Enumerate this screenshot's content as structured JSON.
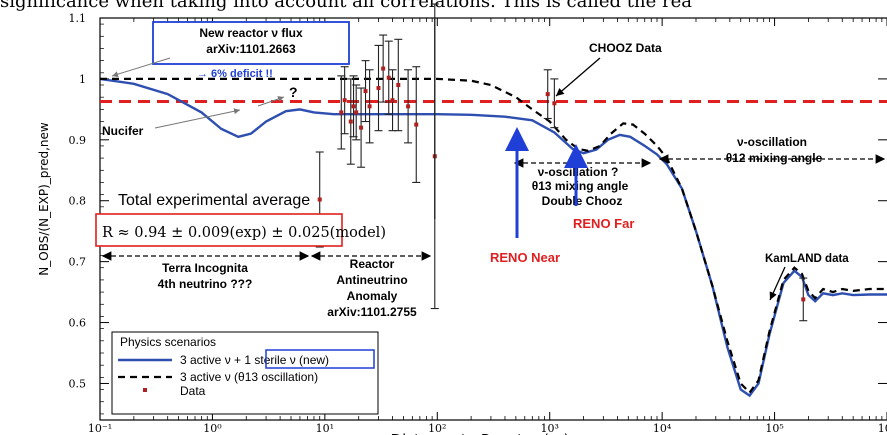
{
  "top_caption": "significance when taking into account all correlations. This is called the rea",
  "chart_data": {
    "type": "line",
    "title": "",
    "xlabel": "Distance to Reactor (m)",
    "ylabel": "N_OBS/(N_EXP)_pred,new",
    "xscale": "log",
    "xlim": [
      0.1,
      1000000
    ],
    "ylim": [
      0.44,
      1.1
    ],
    "x_ticks": [
      0.1,
      1,
      10,
      100,
      1000,
      10000,
      100000,
      1000000
    ],
    "x_tick_labels": [
      "10⁻¹",
      "10⁰",
      "10¹",
      "10²",
      "10³",
      "10⁴",
      "10⁵",
      "10⁶"
    ],
    "y_ticks": [
      0.5,
      0.6,
      0.7,
      0.8,
      0.9,
      1.0,
      1.1
    ],
    "y_tick_labels": [
      "0.5",
      "0.6",
      "0.7",
      "0.8",
      "0.9",
      "1",
      "1.1"
    ],
    "grid": false,
    "series": [
      {
        "name": "3 active ν + 1 sterile ν (new)",
        "color": "#2e4fb0",
        "style": "solid",
        "points": [
          [
            0.1,
            1.0
          ],
          [
            0.2,
            0.992
          ],
          [
            0.4,
            0.975
          ],
          [
            0.8,
            0.945
          ],
          [
            1.2,
            0.918
          ],
          [
            1.7,
            0.905
          ],
          [
            2.2,
            0.91
          ],
          [
            3.0,
            0.93
          ],
          [
            4.5,
            0.947
          ],
          [
            6.0,
            0.95
          ],
          [
            8.0,
            0.945
          ],
          [
            12,
            0.942
          ],
          [
            20,
            0.942
          ],
          [
            50,
            0.942
          ],
          [
            100,
            0.942
          ],
          [
            200,
            0.941
          ],
          [
            400,
            0.938
          ],
          [
            700,
            0.932
          ],
          [
            1100,
            0.912
          ],
          [
            1600,
            0.885
          ],
          [
            2000,
            0.878
          ],
          [
            2600,
            0.884
          ],
          [
            3300,
            0.9
          ],
          [
            4200,
            0.908
          ],
          [
            5200,
            0.905
          ],
          [
            7000,
            0.89
          ],
          [
            9000,
            0.876
          ],
          [
            11000,
            0.86
          ],
          [
            15000,
            0.82
          ],
          [
            20000,
            0.75
          ],
          [
            28000,
            0.66
          ],
          [
            38000,
            0.56
          ],
          [
            50000,
            0.49
          ],
          [
            60000,
            0.48
          ],
          [
            72000,
            0.5
          ],
          [
            90000,
            0.58
          ],
          [
            120000,
            0.665
          ],
          [
            150000,
            0.685
          ],
          [
            175000,
            0.675
          ],
          [
            200000,
            0.645
          ],
          [
            230000,
            0.635
          ],
          [
            270000,
            0.648
          ],
          [
            330000,
            0.645
          ],
          [
            400000,
            0.648
          ],
          [
            500000,
            0.645
          ],
          [
            700000,
            0.646
          ],
          [
            1000000,
            0.646
          ]
        ]
      },
      {
        "name": "3 active ν (θ13 oscillation)",
        "color": "#000000",
        "style": "dashed",
        "points": [
          [
            0.1,
            1.0
          ],
          [
            1,
            1.0
          ],
          [
            10,
            1.0
          ],
          [
            50,
            1.0
          ],
          [
            100,
            1.0
          ],
          [
            200,
            0.997
          ],
          [
            300,
            0.99
          ],
          [
            500,
            0.97
          ],
          [
            700,
            0.95
          ],
          [
            1000,
            0.93
          ],
          [
            1400,
            0.9
          ],
          [
            1800,
            0.885
          ],
          [
            2200,
            0.882
          ],
          [
            2800,
            0.89
          ],
          [
            3500,
            0.91
          ],
          [
            4500,
            0.927
          ],
          [
            5500,
            0.925
          ],
          [
            7000,
            0.91
          ],
          [
            9000,
            0.89
          ],
          [
            11000,
            0.87
          ],
          [
            15000,
            0.82
          ],
          [
            20000,
            0.75
          ],
          [
            28000,
            0.66
          ],
          [
            38000,
            0.57
          ],
          [
            50000,
            0.5
          ],
          [
            60000,
            0.485
          ],
          [
            72000,
            0.505
          ],
          [
            90000,
            0.585
          ],
          [
            120000,
            0.67
          ],
          [
            150000,
            0.69
          ],
          [
            175000,
            0.68
          ],
          [
            200000,
            0.652
          ],
          [
            230000,
            0.64
          ],
          [
            270000,
            0.655
          ],
          [
            330000,
            0.65
          ],
          [
            400000,
            0.655
          ],
          [
            500000,
            0.652
          ],
          [
            700000,
            0.655
          ],
          [
            1000000,
            0.655
          ]
        ]
      }
    ],
    "reference_lines": [
      {
        "y": 0.963,
        "color": "#e02020",
        "style": "dashed"
      }
    ],
    "data_points": [
      {
        "x": 9.0,
        "y": 0.802,
        "err": 0.078
      },
      {
        "x": 14,
        "y": 0.945,
        "err": 0.06
      },
      {
        "x": 15,
        "y": 0.965,
        "err": 0.055
      },
      {
        "x": 17,
        "y": 0.93,
        "err": 0.07
      },
      {
        "x": 18,
        "y": 0.955,
        "err": 0.05
      },
      {
        "x": 19,
        "y": 0.945,
        "err": 0.045
      },
      {
        "x": 21,
        "y": 0.92,
        "err": 0.065
      },
      {
        "x": 23,
        "y": 0.98,
        "err": 0.05
      },
      {
        "x": 25,
        "y": 0.955,
        "err": 0.06
      },
      {
        "x": 30,
        "y": 0.985,
        "err": 0.07
      },
      {
        "x": 33,
        "y": 1.017,
        "err": 0.055
      },
      {
        "x": 37,
        "y": 1.002,
        "err": 0.06
      },
      {
        "x": 40,
        "y": 0.965,
        "err": 0.05
      },
      {
        "x": 45,
        "y": 0.99,
        "err": 0.075
      },
      {
        "x": 55,
        "y": 0.955,
        "err": 0.06
      },
      {
        "x": 65,
        "y": 0.925,
        "err": 0.095
      },
      {
        "x": 95,
        "y": 0.873,
        "err": 0.25
      },
      {
        "x": 960,
        "y": 0.975,
        "err": 0.04
      },
      {
        "x": 1100,
        "y": 0.96,
        "err": 0.04
      },
      {
        "x": 180000,
        "y": 0.638,
        "err": 0.035
      }
    ],
    "annotations": {
      "flux_box_line1": "New reactor ν flux",
      "flux_box_line2": "arXiv:1101.2663",
      "deficit": "→ 6% deficit !!",
      "chooz": "CHOOZ Data",
      "question": "?",
      "nucifer": "Nucifer",
      "total_avg": "Total experimental average",
      "r_formula": "R ≈ 0.94 ± 0.009(exp) ± 0.025(model)",
      "terra_line1": "Terra Incognita",
      "terra_line2": "4th neutrino ???",
      "raa_line1": "Reactor",
      "raa_line2": "Antineutrino",
      "raa_line3": "Anomaly",
      "raa_line4": "arXiv:1101.2755",
      "theta13_line1": "ν-oscillation ?",
      "theta13_line2": "θ13 mixing angle",
      "theta13_line3": "Double Chooz",
      "theta12_line1": "ν-oscillation",
      "theta12_line2": "θ12 mixing angle",
      "reno_near": "RENO Near",
      "reno_far": "RENO Far",
      "kamland": "KamLAND data"
    },
    "legend": {
      "title": "Physics scenarios",
      "placement": "bottom-left",
      "entries": [
        "3 active ν + 1 sterile ν (new)",
        "3 active ν (θ13 oscillation)",
        "Data"
      ]
    },
    "colors": {
      "accent_blue": "#1f3fd6",
      "reno_red": "#e02020",
      "formula_box": "#e02020"
    }
  }
}
